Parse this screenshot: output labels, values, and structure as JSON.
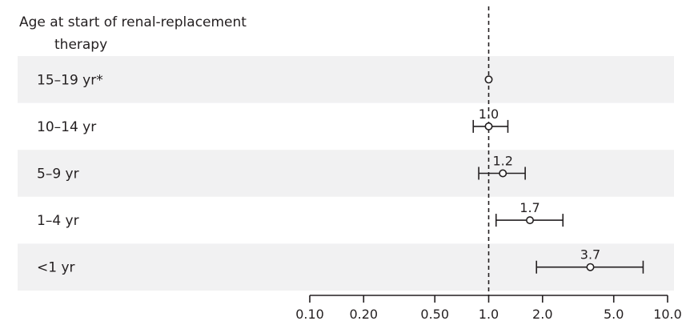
{
  "chart_data": {
    "type": "forest",
    "header": [
      "Age at start of renal-replacement",
      "therapy"
    ],
    "xscale": "log",
    "xlim": [
      0.1,
      10.0
    ],
    "reference_line": 1.0,
    "ticks": [
      {
        "value": 0.1,
        "label": "0.10"
      },
      {
        "value": 0.2,
        "label": "0.20"
      },
      {
        "value": 0.5,
        "label": "0.50"
      },
      {
        "value": 1.0,
        "label": "1.0"
      },
      {
        "value": 2.0,
        "label": "2.0"
      },
      {
        "value": 5.0,
        "label": "5.0"
      },
      {
        "value": 10.0,
        "label": "10.0"
      }
    ],
    "rows": [
      {
        "label": "15–19 yr*",
        "estimate": 1.0,
        "ci_low": null,
        "ci_high": null,
        "value_label": "",
        "shaded": true
      },
      {
        "label": "10–14 yr",
        "estimate": 1.0,
        "ci_low": 0.82,
        "ci_high": 1.28,
        "value_label": "1.0",
        "shaded": false
      },
      {
        "label": "5–9 yr",
        "estimate": 1.2,
        "ci_low": 0.88,
        "ci_high": 1.6,
        "value_label": "1.2",
        "shaded": true
      },
      {
        "label": "1–4 yr",
        "estimate": 1.7,
        "ci_low": 1.1,
        "ci_high": 2.6,
        "value_label": "1.7",
        "shaded": false
      },
      {
        "label": "<1 yr",
        "estimate": 3.7,
        "ci_low": 1.85,
        "ci_high": 7.3,
        "value_label": "3.7",
        "shaded": true
      }
    ],
    "colors": {
      "shade": "#f1f1f2",
      "ink": "#231f20"
    }
  }
}
